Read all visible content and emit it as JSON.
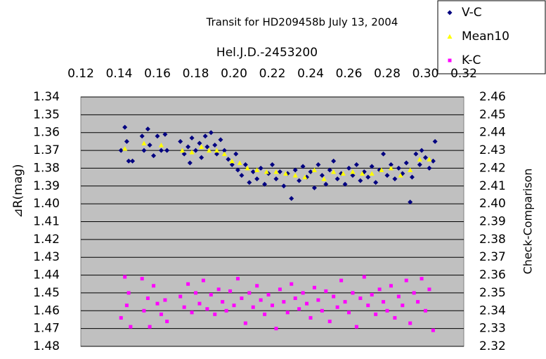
{
  "chart_data": {
    "type": "scatter",
    "title": "Transit for HD209458b   July 13, 2004",
    "xlabel": "Hel.J.D.-2453200",
    "ylabel": "⊿R(mag)",
    "y2label": "Check-Comparison",
    "xaxis_position": "top",
    "y_reversed": true,
    "xlim": [
      0.12,
      0.32
    ],
    "xticks": [
      0.12,
      0.14,
      0.16,
      0.18,
      {
        "value": 0.2,
        "label": "0.20"
      },
      0.22,
      0.24,
      0.26,
      0.28,
      {
        "value": 0.3,
        "label": "0.30"
      },
      0.32
    ],
    "ylim": [
      1.34,
      1.48
    ],
    "yticks": [
      1.34,
      1.35,
      1.36,
      1.37,
      1.38,
      1.39,
      {
        "value": 1.4,
        "label": "1.40"
      },
      1.41,
      1.42,
      1.43,
      1.44,
      1.45,
      1.46,
      1.47,
      1.48
    ],
    "y2lim": [
      2.32,
      2.46
    ],
    "y2ticks": [
      2.32,
      2.33,
      2.34,
      2.35,
      2.36,
      2.37,
      2.38,
      2.39,
      {
        "value": 2.4,
        "label": "2.40"
      },
      2.41,
      2.42,
      2.43,
      2.44,
      2.45,
      2.46
    ],
    "grid": true,
    "legend": "top-right",
    "series": [
      {
        "name": "V-C",
        "color": "#000080",
        "marker": "diamond",
        "x": [
          0.141,
          0.143,
          0.144,
          0.145,
          0.147,
          0.152,
          0.153,
          0.155,
          0.156,
          0.158,
          0.16,
          0.162,
          0.164,
          0.165,
          0.172,
          0.174,
          0.176,
          0.177,
          0.178,
          0.18,
          0.182,
          0.183,
          0.185,
          0.186,
          0.188,
          0.19,
          0.191,
          0.193,
          0.195,
          0.197,
          0.199,
          0.201,
          0.202,
          0.204,
          0.206,
          0.208,
          0.21,
          0.212,
          0.214,
          0.216,
          0.218,
          0.22,
          0.222,
          0.224,
          0.226,
          0.228,
          0.23,
          0.232,
          0.234,
          0.236,
          0.238,
          0.24,
          0.242,
          0.244,
          0.246,
          0.248,
          0.25,
          0.252,
          0.254,
          0.256,
          0.258,
          0.26,
          0.262,
          0.264,
          0.266,
          0.268,
          0.27,
          0.272,
          0.274,
          0.276,
          0.278,
          0.28,
          0.282,
          0.284,
          0.286,
          0.288,
          0.29,
          0.292,
          0.293,
          0.295,
          0.297,
          0.298,
          0.3,
          0.302,
          0.304,
          0.305
        ],
        "values": [
          1.37,
          1.357,
          1.365,
          1.376,
          1.376,
          1.362,
          1.37,
          1.358,
          1.367,
          1.373,
          1.362,
          1.37,
          1.361,
          1.37,
          1.365,
          1.372,
          1.368,
          1.377,
          1.363,
          1.37,
          1.366,
          1.374,
          1.362,
          1.368,
          1.36,
          1.367,
          1.372,
          1.364,
          1.37,
          1.375,
          1.378,
          1.372,
          1.381,
          1.384,
          1.378,
          1.388,
          1.382,
          1.386,
          1.38,
          1.389,
          1.383,
          1.378,
          1.386,
          1.382,
          1.39,
          1.383,
          1.397,
          1.381,
          1.387,
          1.379,
          1.385,
          1.382,
          1.391,
          1.378,
          1.384,
          1.389,
          1.381,
          1.376,
          1.386,
          1.383,
          1.389,
          1.38,
          1.384,
          1.378,
          1.387,
          1.382,
          1.385,
          1.379,
          1.388,
          1.381,
          1.372,
          1.384,
          1.378,
          1.386,
          1.38,
          1.383,
          1.377,
          1.399,
          1.385,
          1.372,
          1.378,
          1.37,
          1.374,
          1.38,
          1.376,
          1.365
        ]
      },
      {
        "name": "Mean10",
        "color": "#ffff00",
        "marker": "triangle",
        "x": [
          0.143,
          0.153,
          0.162,
          0.173,
          0.178,
          0.183,
          0.187,
          0.191,
          0.195,
          0.199,
          0.203,
          0.207,
          0.212,
          0.217,
          0.222,
          0.227,
          0.232,
          0.237,
          0.242,
          0.247,
          0.252,
          0.257,
          0.262,
          0.267,
          0.272,
          0.277,
          0.282,
          0.287,
          0.292,
          0.297,
          0.302
        ],
        "values": [
          1.369,
          1.366,
          1.367,
          1.37,
          1.371,
          1.368,
          1.37,
          1.37,
          1.372,
          1.376,
          1.377,
          1.38,
          1.381,
          1.382,
          1.382,
          1.383,
          1.384,
          1.385,
          1.381,
          1.386,
          1.382,
          1.383,
          1.382,
          1.383,
          1.383,
          1.381,
          1.38,
          1.384,
          1.381,
          1.375,
          1.375
        ]
      },
      {
        "name": "K-C",
        "color": "#ff00ff",
        "marker": "square",
        "axis": "y2",
        "x": [
          0.141,
          0.143,
          0.144,
          0.145,
          0.146,
          0.152,
          0.153,
          0.155,
          0.156,
          0.158,
          0.16,
          0.162,
          0.164,
          0.165,
          0.172,
          0.174,
          0.176,
          0.178,
          0.18,
          0.182,
          0.184,
          0.186,
          0.188,
          0.19,
          0.192,
          0.194,
          0.196,
          0.198,
          0.2,
          0.202,
          0.204,
          0.206,
          0.208,
          0.21,
          0.212,
          0.214,
          0.216,
          0.218,
          0.22,
          0.222,
          0.224,
          0.226,
          0.228,
          0.23,
          0.232,
          0.234,
          0.236,
          0.238,
          0.24,
          0.242,
          0.244,
          0.246,
          0.248,
          0.25,
          0.252,
          0.254,
          0.256,
          0.258,
          0.26,
          0.262,
          0.264,
          0.266,
          0.268,
          0.27,
          0.272,
          0.274,
          0.276,
          0.278,
          0.28,
          0.282,
          0.284,
          0.286,
          0.288,
          0.29,
          0.292,
          0.294,
          0.296,
          0.298,
          0.3,
          0.302,
          0.304
        ],
        "values": [
          2.336,
          2.359,
          2.343,
          2.35,
          2.331,
          2.358,
          2.34,
          2.347,
          2.331,
          2.354,
          2.344,
          2.338,
          2.346,
          2.334,
          2.348,
          2.342,
          2.355,
          2.339,
          2.35,
          2.344,
          2.357,
          2.341,
          2.349,
          2.338,
          2.352,
          2.345,
          2.34,
          2.351,
          2.343,
          2.358,
          2.347,
          2.333,
          2.35,
          2.342,
          2.354,
          2.346,
          2.338,
          2.349,
          2.343,
          2.33,
          2.352,
          2.345,
          2.339,
          2.355,
          2.347,
          2.341,
          2.35,
          2.344,
          2.336,
          2.353,
          2.346,
          2.34,
          2.351,
          2.334,
          2.348,
          2.342,
          2.357,
          2.345,
          2.339,
          2.35,
          2.331,
          2.347,
          2.359,
          2.343,
          2.349,
          2.338,
          2.352,
          2.345,
          2.34,
          2.354,
          2.336,
          2.348,
          2.343,
          2.357,
          2.333,
          2.35,
          2.345,
          2.358,
          2.34,
          2.352,
          2.329
        ]
      }
    ]
  }
}
